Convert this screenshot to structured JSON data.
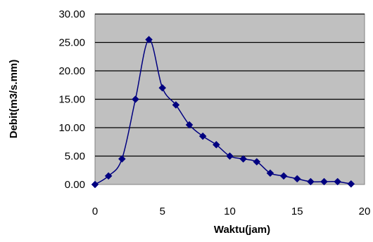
{
  "chart_data": {
    "type": "line",
    "title": "",
    "xlabel": "Waktu(jam)",
    "ylabel": "Debit(m3/s.mm)",
    "xlim": [
      0,
      20
    ],
    "ylim": [
      0,
      30
    ],
    "xticks": [
      "0",
      "5",
      "10",
      "15",
      "20"
    ],
    "yticks": [
      "0.00",
      "5.00",
      "10.00",
      "15.00",
      "20.00",
      "25.00",
      "30.00"
    ],
    "grid": "horizontal",
    "legend": "none",
    "smoothed": true,
    "marker": "diamond",
    "series": [
      {
        "x": [
          0,
          1,
          2,
          3,
          4,
          5,
          6,
          7,
          8,
          9,
          10,
          11,
          12,
          13,
          14,
          15,
          16,
          17,
          18,
          19
        ],
        "y": [
          0.0,
          1.5,
          4.5,
          15.0,
          25.5,
          17.0,
          14.0,
          10.5,
          8.5,
          7.0,
          5.0,
          4.5,
          4.0,
          2.0,
          1.5,
          1.0,
          0.5,
          0.5,
          0.5,
          0.1
        ]
      }
    ],
    "colors": {
      "plot_background": "#c0c0c0",
      "gridline": "#000000",
      "series": "#000080"
    }
  }
}
